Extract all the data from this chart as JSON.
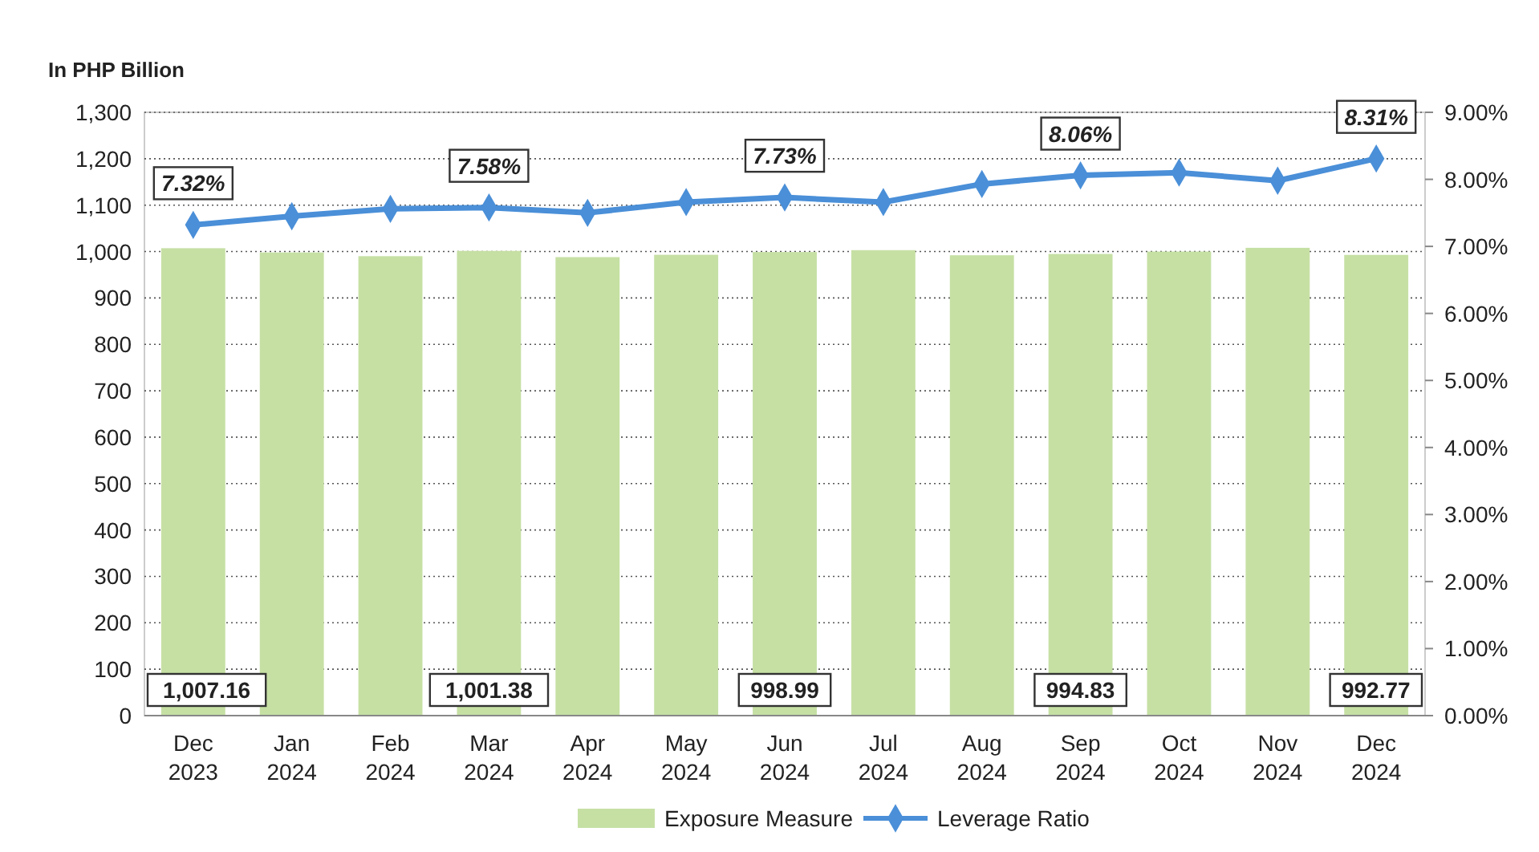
{
  "chart_data": {
    "type": "bar",
    "ylabel": "In PHP Billion",
    "categories": [
      "Dec\n2023",
      "Jan\n2024",
      "Feb\n2024",
      "Mar\n2024",
      "Apr\n2024",
      "May\n2024",
      "Jun\n2024",
      "Jul\n2024",
      "Aug\n2024",
      "Sep\n2024",
      "Oct\n2024",
      "Nov\n2024",
      "Dec\n2024"
    ],
    "series": [
      {
        "name": "Exposure Measure",
        "color": "#c6e0a4",
        "values": [
          1007.16,
          998,
          990,
          1001.38,
          988,
          993,
          998.99,
          1003,
          992,
          994.83,
          1000,
          1008,
          992.77
        ],
        "value_labels": [
          "1,007.16",
          null,
          null,
          "1,001.38",
          null,
          null,
          "998.99",
          null,
          null,
          "994.83",
          null,
          null,
          "992.77"
        ]
      },
      {
        "name": "Leverage Ratio",
        "type": "line",
        "axis": "y2",
        "color": "#4a8fd8",
        "marker": "diamond",
        "values": [
          7.32,
          7.45,
          7.56,
          7.58,
          7.5,
          7.66,
          7.73,
          7.66,
          7.93,
          8.06,
          8.1,
          7.98,
          8.31
        ],
        "value_labels": [
          "7.32%",
          null,
          null,
          "7.58%",
          null,
          null,
          "7.73%",
          null,
          null,
          "8.06%",
          null,
          null,
          "8.31%"
        ]
      }
    ],
    "ylim": [
      0,
      1300
    ],
    "yticks": [
      {
        "value": 0,
        "label": "0"
      },
      {
        "value": 100,
        "label": "100"
      },
      {
        "value": 200,
        "label": "200"
      },
      {
        "value": 300,
        "label": "300"
      },
      {
        "value": 400,
        "label": "400"
      },
      {
        "value": 500,
        "label": "500"
      },
      {
        "value": 600,
        "label": "600"
      },
      {
        "value": 700,
        "label": "700"
      },
      {
        "value": 800,
        "label": "800"
      },
      {
        "value": 900,
        "label": "900"
      },
      {
        "value": 1000,
        "label": "1,000"
      },
      {
        "value": 1100,
        "label": "1,100"
      },
      {
        "value": 1200,
        "label": "1,200"
      },
      {
        "value": 1300,
        "label": "1,300"
      }
    ],
    "y2lim": [
      0,
      9
    ],
    "y2ticks": [
      {
        "value": 0,
        "label": "0.00%"
      },
      {
        "value": 1,
        "label": "1.00%"
      },
      {
        "value": 2,
        "label": "2.00%"
      },
      {
        "value": 3,
        "label": "3.00%"
      },
      {
        "value": 4,
        "label": "4.00%"
      },
      {
        "value": 5,
        "label": "5.00%"
      },
      {
        "value": 6,
        "label": "6.00%"
      },
      {
        "value": 7,
        "label": "7.00%"
      },
      {
        "value": 8,
        "label": "8.00%"
      },
      {
        "value": 9,
        "label": "9.00%"
      }
    ],
    "grid": "y",
    "legend": "bottom"
  }
}
